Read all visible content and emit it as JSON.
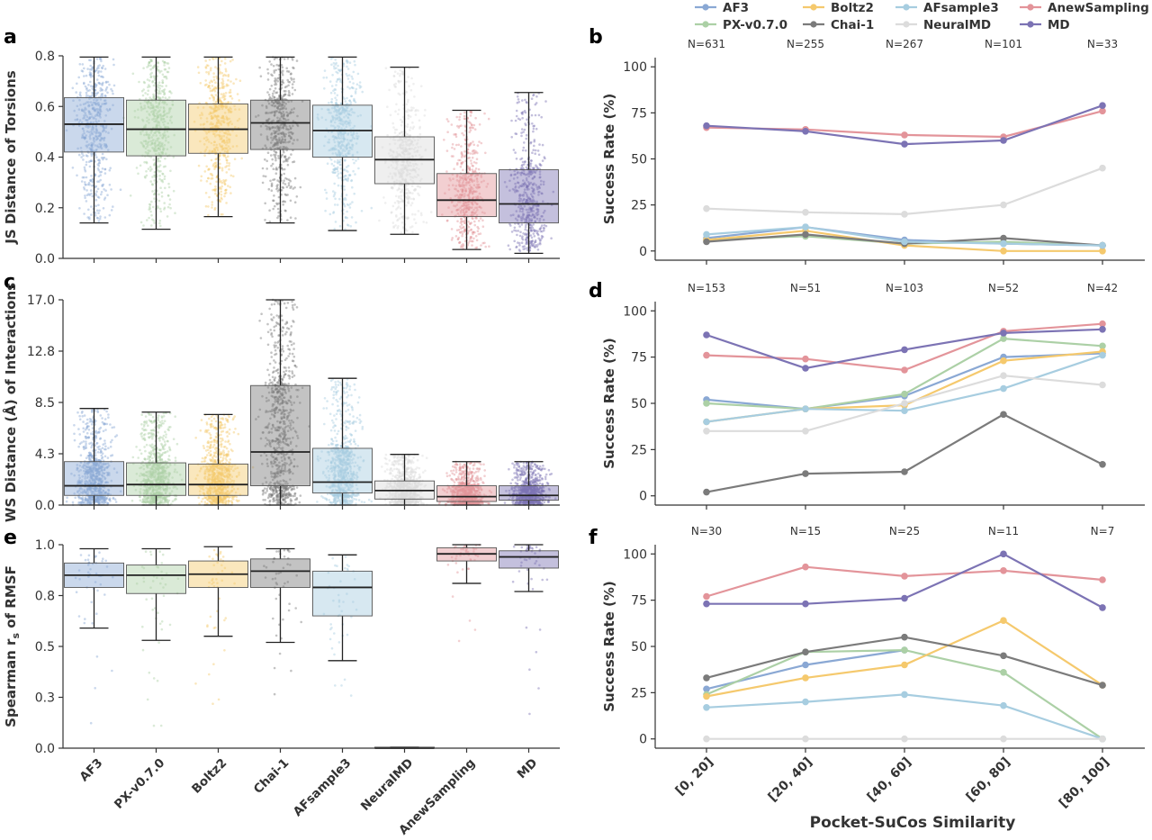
{
  "legend": {
    "entries": [
      {
        "name": "AF3",
        "color": "#8aa8d4"
      },
      {
        "name": "PX-v0.7.0",
        "color": "#acd0a6"
      },
      {
        "name": "Boltz2",
        "color": "#f5c96d"
      },
      {
        "name": "Chai-1",
        "color": "#7b7b7b"
      },
      {
        "name": "AFsample3",
        "color": "#a7cde0"
      },
      {
        "name": "NeuralMD",
        "color": "#dcdcdc"
      },
      {
        "name": "AnewSampling",
        "color": "#e3949a"
      },
      {
        "name": "MD",
        "color": "#7c73b4"
      }
    ]
  },
  "chart_data": [
    {
      "panel": "a",
      "type": "box",
      "ylabel": "JS Distance of Torsions",
      "ylim": [
        0,
        0.8
      ],
      "yticks": [
        "0.0",
        "0.2",
        "0.4",
        "0.6",
        "0.8"
      ],
      "ytick_values": [
        0,
        0.2,
        0.4,
        0.6,
        0.8
      ],
      "categories": [
        "AF3",
        "PX-v0.7.0",
        "Boltz2",
        "Chai-1",
        "AFsample3",
        "NeuralMD",
        "AnewSampling",
        "MD"
      ],
      "boxes": [
        {
          "name": "AF3",
          "whislo": 0.14,
          "q1": 0.42,
          "med": 0.53,
          "q3": 0.635,
          "whishi": 0.795
        },
        {
          "name": "PX-v0.7.0",
          "whislo": 0.115,
          "q1": 0.405,
          "med": 0.51,
          "q3": 0.625,
          "whishi": 0.795
        },
        {
          "name": "Boltz2",
          "whislo": 0.165,
          "q1": 0.415,
          "med": 0.51,
          "q3": 0.61,
          "whishi": 0.795
        },
        {
          "name": "Chai-1",
          "whislo": 0.14,
          "q1": 0.43,
          "med": 0.535,
          "q3": 0.625,
          "whishi": 0.795
        },
        {
          "name": "AFsample3",
          "whislo": 0.11,
          "q1": 0.4,
          "med": 0.505,
          "q3": 0.605,
          "whishi": 0.795
        },
        {
          "name": "NeuralMD",
          "whislo": 0.095,
          "q1": 0.295,
          "med": 0.39,
          "q3": 0.48,
          "whishi": 0.755
        },
        {
          "name": "AnewSampling",
          "whislo": 0.035,
          "q1": 0.165,
          "med": 0.23,
          "q3": 0.335,
          "whishi": 0.585
        },
        {
          "name": "MD",
          "whislo": 0.02,
          "q1": 0.14,
          "med": 0.215,
          "q3": 0.35,
          "whishi": 0.655
        }
      ]
    },
    {
      "panel": "b",
      "type": "line",
      "ylabel": "Success Rate (%)",
      "ylim": [
        -5,
        105
      ],
      "yticks": [
        "0",
        "25",
        "50",
        "75",
        "100"
      ],
      "ytick_values": [
        0,
        25,
        50,
        75,
        100
      ],
      "n_labels": [
        "N=631",
        "N=255",
        "N=267",
        "N=101",
        "N=33"
      ],
      "series": [
        {
          "name": "AF3",
          "values": [
            7,
            13,
            6,
            4,
            3
          ]
        },
        {
          "name": "PX-v0.7.0",
          "values": [
            6,
            8,
            4,
            5,
            3
          ]
        },
        {
          "name": "Boltz2",
          "values": [
            6,
            11,
            3,
            0,
            0
          ]
        },
        {
          "name": "Chai-1",
          "values": [
            5,
            9,
            4,
            7,
            3
          ]
        },
        {
          "name": "AFsample3",
          "values": [
            9,
            13,
            5,
            4,
            3
          ]
        },
        {
          "name": "NeuralMD",
          "values": [
            23,
            21,
            20,
            25,
            45
          ]
        },
        {
          "name": "AnewSampling",
          "values": [
            67,
            66,
            63,
            62,
            76
          ]
        },
        {
          "name": "MD",
          "values": [
            68,
            65,
            58,
            60,
            79
          ]
        }
      ]
    },
    {
      "panel": "c",
      "type": "box",
      "ylabel": "WS Distance (Å) of Interactions",
      "ylim": [
        0,
        17.0
      ],
      "yticks": [
        "0.0",
        "4.3",
        "8.5",
        "12.8",
        "17.0"
      ],
      "ytick_values": [
        0,
        4.25,
        8.5,
        12.75,
        17.0
      ],
      "categories": [
        "AF3",
        "PX-v0.7.0",
        "Boltz2",
        "Chai-1",
        "AFsample3",
        "NeuralMD",
        "AnewSampling",
        "MD"
      ],
      "boxes": [
        {
          "name": "AF3",
          "whislo": 0,
          "q1": 0.8,
          "med": 1.6,
          "q3": 3.6,
          "whishi": 8.0
        },
        {
          "name": "PX-v0.7.0",
          "whislo": 0,
          "q1": 0.8,
          "med": 1.7,
          "q3": 3.5,
          "whishi": 7.7
        },
        {
          "name": "Boltz2",
          "whislo": 0,
          "q1": 0.8,
          "med": 1.7,
          "q3": 3.4,
          "whishi": 7.5
        },
        {
          "name": "Chai-1",
          "whislo": 0,
          "q1": 1.6,
          "med": 4.4,
          "q3": 9.9,
          "whishi": 17.0
        },
        {
          "name": "AFsample3",
          "whislo": 0,
          "q1": 1.0,
          "med": 1.9,
          "q3": 4.7,
          "whishi": 10.5
        },
        {
          "name": "NeuralMD",
          "whislo": 0,
          "q1": 0.5,
          "med": 1.2,
          "q3": 2.0,
          "whishi": 4.2
        },
        {
          "name": "AnewSampling",
          "whislo": 0,
          "q1": 0.3,
          "med": 0.7,
          "q3": 1.6,
          "whishi": 3.6
        },
        {
          "name": "MD",
          "whislo": 0,
          "q1": 0.4,
          "med": 0.8,
          "q3": 1.6,
          "whishi": 3.6
        }
      ]
    },
    {
      "panel": "d",
      "type": "line",
      "ylabel": "Success Rate (%)",
      "ylim": [
        -5,
        105
      ],
      "yticks": [
        "0",
        "25",
        "50",
        "75",
        "100"
      ],
      "ytick_values": [
        0,
        25,
        50,
        75,
        100
      ],
      "n_labels": [
        "N=153",
        "N=51",
        "N=103",
        "N=52",
        "N=42"
      ],
      "series": [
        {
          "name": "AF3",
          "values": [
            52,
            47,
            54,
            75,
            77
          ]
        },
        {
          "name": "PX-v0.7.0",
          "values": [
            50,
            47,
            55,
            85,
            81
          ]
        },
        {
          "name": "Boltz2",
          "values": [
            40,
            47,
            49,
            73,
            78
          ]
        },
        {
          "name": "Chai-1",
          "values": [
            2,
            12,
            13,
            44,
            17
          ]
        },
        {
          "name": "AFsample3",
          "values": [
            40,
            47,
            46,
            58,
            76
          ]
        },
        {
          "name": "NeuralMD",
          "values": [
            35,
            35,
            50,
            65,
            60
          ]
        },
        {
          "name": "AnewSampling",
          "values": [
            76,
            74,
            68,
            89,
            93
          ]
        },
        {
          "name": "MD",
          "values": [
            87,
            69,
            79,
            88,
            90
          ]
        }
      ]
    },
    {
      "panel": "e",
      "type": "box",
      "ylabel": "Spearman rs of RMSF",
      "ylabel_main": "Spearman r",
      "ylabel_sub": "s",
      "ylabel_tail": " of RMSF",
      "ylim": [
        0,
        1.0
      ],
      "yticks": [
        "0.0",
        "0.3",
        "0.5",
        "0.8",
        "1.0"
      ],
      "ytick_values": [
        0,
        0.25,
        0.5,
        0.75,
        1.0
      ],
      "categories": [
        "AF3",
        "PX-v0.7.0",
        "Boltz2",
        "Chai-1",
        "AFsample3",
        "NeuralMD",
        "AnewSampling",
        "MD"
      ],
      "xticklabels": [
        "AF3",
        "PX-v0.7.0",
        "Boltz2",
        "Chai-1",
        "AFsample3",
        "NeuralMD",
        "AnewSampling",
        "MD"
      ],
      "boxes": [
        {
          "name": "AF3",
          "whislo": 0.59,
          "q1": 0.79,
          "med": 0.85,
          "q3": 0.91,
          "whishi": 0.98
        },
        {
          "name": "PX-v0.7.0",
          "whislo": 0.53,
          "q1": 0.76,
          "med": 0.85,
          "q3": 0.9,
          "whishi": 0.98
        },
        {
          "name": "Boltz2",
          "whislo": 0.55,
          "q1": 0.79,
          "med": 0.855,
          "q3": 0.92,
          "whishi": 0.99
        },
        {
          "name": "Chai-1",
          "whislo": 0.52,
          "q1": 0.79,
          "med": 0.87,
          "q3": 0.93,
          "whishi": 0.98
        },
        {
          "name": "AFsample3",
          "whislo": 0.43,
          "q1": 0.65,
          "med": 0.79,
          "q3": 0.87,
          "whishi": 0.95
        },
        {
          "name": "NeuralMD",
          "whislo": 0,
          "q1": 0,
          "med": 0,
          "q3": 0.005,
          "whishi": 0.005
        },
        {
          "name": "AnewSampling",
          "whislo": 0.81,
          "q1": 0.92,
          "med": 0.955,
          "q3": 0.985,
          "whishi": 1.0
        },
        {
          "name": "MD",
          "whislo": 0.77,
          "q1": 0.885,
          "med": 0.94,
          "q3": 0.97,
          "whishi": 1.0
        }
      ]
    },
    {
      "panel": "f",
      "type": "line",
      "ylabel": "Success Rate (%)",
      "xlabel": "Pocket-SuCos Similarity",
      "ylim": [
        -5,
        105
      ],
      "yticks": [
        "0",
        "25",
        "50",
        "75",
        "100"
      ],
      "ytick_values": [
        0,
        25,
        50,
        75,
        100
      ],
      "categories": [
        "[0, 20]",
        "[20, 40]",
        "[40, 60]",
        "[60, 80]",
        "[80, 100]"
      ],
      "n_labels": [
        "N=30",
        "N=15",
        "N=25",
        "N=11",
        "N=7"
      ],
      "series": [
        {
          "name": "AF3",
          "values": [
            27,
            40,
            48,
            null,
            null
          ]
        },
        {
          "name": "PX-v0.7.0",
          "values": [
            24,
            47,
            48,
            36,
            0
          ]
        },
        {
          "name": "Boltz2",
          "values": [
            23,
            33,
            40,
            64,
            29
          ]
        },
        {
          "name": "Chai-1",
          "values": [
            33,
            47,
            55,
            45,
            29
          ]
        },
        {
          "name": "AFsample3",
          "values": [
            17,
            20,
            24,
            18,
            0
          ]
        },
        {
          "name": "NeuralMD",
          "values": [
            0,
            0,
            0,
            0,
            0
          ]
        },
        {
          "name": "AnewSampling",
          "values": [
            77,
            93,
            88,
            91,
            86
          ]
        },
        {
          "name": "MD",
          "values": [
            73,
            73,
            76,
            100,
            71
          ]
        }
      ]
    }
  ]
}
